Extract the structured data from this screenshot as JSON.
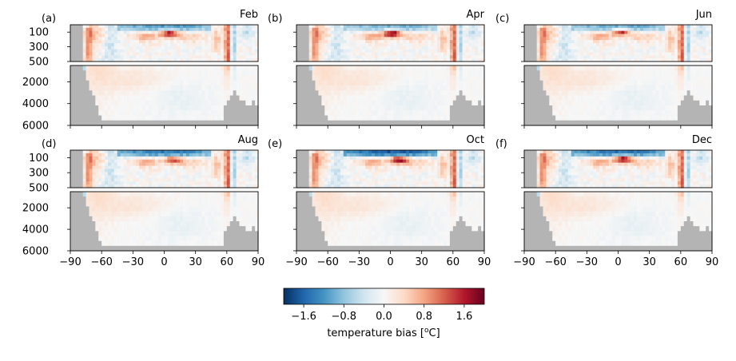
{
  "chart_data": [
    {
      "type": "heatmap",
      "panel_label": "(a)",
      "month": "Feb",
      "x": [
        -90,
        -60,
        -30,
        0,
        30,
        60,
        90
      ],
      "upper_yticks": [
        100,
        300,
        500
      ],
      "lower_yticks": [
        2000,
        4000,
        6000
      ],
      "show_yticklabels": true,
      "show_xticklabels": false,
      "hot_spot": {
        "lat": 5,
        "depth_m": 120,
        "value": 1.8
      },
      "surface_cold": -1.2
    },
    {
      "type": "heatmap",
      "panel_label": "(b)",
      "month": "Apr",
      "x": [
        -90,
        -60,
        -30,
        0,
        30,
        60,
        90
      ],
      "upper_yticks": [
        100,
        300,
        500
      ],
      "lower_yticks": [
        2000,
        4000,
        6000
      ],
      "show_yticklabels": false,
      "show_xticklabels": false,
      "hot_spot": {
        "lat": 2,
        "depth_m": 120,
        "value": 2.0
      },
      "surface_cold": -1.0
    },
    {
      "type": "heatmap",
      "panel_label": "(c)",
      "month": "Jun",
      "x": [
        -90,
        -60,
        -30,
        0,
        30,
        60,
        90
      ],
      "upper_yticks": [
        100,
        300,
        500
      ],
      "lower_yticks": [
        2000,
        4000,
        6000
      ],
      "show_yticklabels": false,
      "show_xticklabels": false,
      "hot_spot": {
        "lat": 3,
        "depth_m": 100,
        "value": 1.6
      },
      "surface_cold": -1.1
    },
    {
      "type": "heatmap",
      "panel_label": "(d)",
      "month": "Aug",
      "x": [
        -90,
        -60,
        -30,
        0,
        30,
        60,
        90
      ],
      "upper_yticks": [
        100,
        300,
        500
      ],
      "lower_yticks": [
        2000,
        4000,
        6000
      ],
      "show_yticklabels": true,
      "show_xticklabels": true,
      "hot_spot": {
        "lat": 8,
        "depth_m": 130,
        "value": 1.4
      },
      "surface_cold": -1.5
    },
    {
      "type": "heatmap",
      "panel_label": "(e)",
      "month": "Oct",
      "x": [
        -90,
        -60,
        -30,
        0,
        30,
        60,
        90
      ],
      "upper_yticks": [
        100,
        300,
        500
      ],
      "lower_yticks": [
        2000,
        4000,
        6000
      ],
      "show_yticklabels": false,
      "show_xticklabels": true,
      "hot_spot": {
        "lat": 8,
        "depth_m": 130,
        "value": 1.9
      },
      "surface_cold": -1.8
    },
    {
      "type": "heatmap",
      "panel_label": "(f)",
      "month": "Dec",
      "x": [
        -90,
        -60,
        -30,
        0,
        30,
        60,
        90
      ],
      "upper_yticks": [
        100,
        300,
        500
      ],
      "lower_yticks": [
        2000,
        4000,
        6000
      ],
      "show_yticklabels": false,
      "show_xticklabels": true,
      "hot_spot": {
        "lat": 5,
        "depth_m": 120,
        "value": 1.9
      },
      "surface_cold": -1.6
    }
  ],
  "colorbar": {
    "label": "temperature bias [°C]",
    "label_prefix": "temperature bias [",
    "label_sup": "o",
    "label_suffix": "C]",
    "vmin": -2,
    "vmax": 2,
    "ticks": [
      -1.6,
      -0.8,
      0.0,
      0.8,
      1.6
    ],
    "tick_labels": [
      "−1.6",
      "−0.8",
      "0.0",
      "0.8",
      "1.6"
    ],
    "colormap": "RdBu_r",
    "colors": [
      "#053061",
      "#2166ac",
      "#4393c3",
      "#92c5de",
      "#d1e5f0",
      "#f7f7f7",
      "#fddbc7",
      "#f4a582",
      "#d6604d",
      "#b2182b",
      "#67001f"
    ]
  },
  "xtick_labels": [
    "−90",
    "−60",
    "−30",
    "0",
    "30",
    "60",
    "90"
  ],
  "land_color": "#b4b4b4"
}
